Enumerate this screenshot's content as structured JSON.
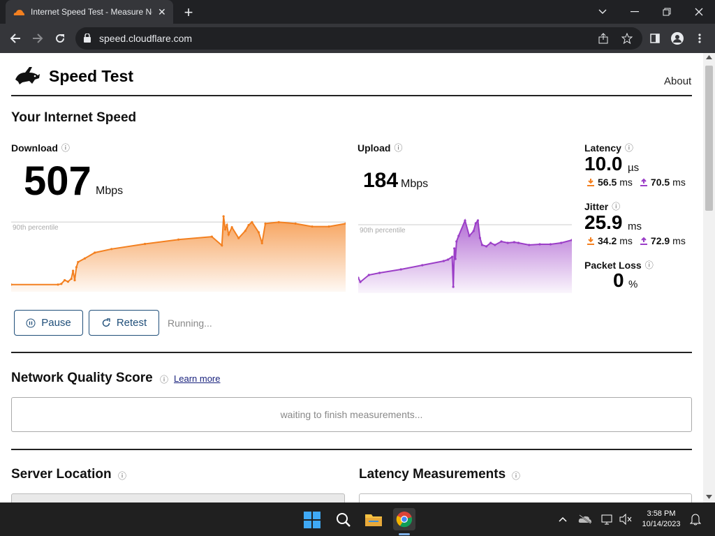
{
  "browser": {
    "tab_title": "Internet Speed Test - Measure Ne",
    "tab_close": "✕",
    "new_tab": "+",
    "url": "speed.cloudflare.com"
  },
  "header": {
    "title": "Speed Test",
    "about": "About"
  },
  "speed": {
    "heading": "Your Internet Speed",
    "download": {
      "label": "Download",
      "value": "507",
      "unit": "Mbps"
    },
    "upload": {
      "label": "Upload",
      "value": "184",
      "unit": "Mbps"
    },
    "percentile_label": "90th percentile"
  },
  "latency": {
    "label": "Latency",
    "value": "10.0",
    "unit": "µs",
    "down": "56.5",
    "up": "70.5",
    "sub_unit": "ms"
  },
  "jitter": {
    "label": "Jitter",
    "value": "25.9",
    "unit": "ms",
    "down": "34.2",
    "up": "72.9",
    "sub_unit": "ms"
  },
  "packet_loss": {
    "label": "Packet Loss",
    "value": "0",
    "unit": "%"
  },
  "controls": {
    "pause": "Pause",
    "retest": "Retest",
    "status": "Running..."
  },
  "nqs": {
    "heading": "Network Quality Score",
    "learn_more": "Learn more",
    "waiting": "waiting to finish measurements..."
  },
  "sections": {
    "server_location": "Server Location",
    "latency_measurements": "Latency Measurements"
  },
  "taskbar": {
    "time": "3:58 PM",
    "date": "10/14/2023"
  },
  "colors": {
    "download": "#f38020",
    "upload": "#9b3ec7",
    "brand": "#1f4e79"
  },
  "chart_data": [
    {
      "type": "area",
      "title": "Download",
      "annotations": [
        "90th percentile"
      ],
      "x": [
        0,
        14,
        15,
        16,
        17,
        18,
        18.5,
        19,
        19.5,
        20,
        22,
        25,
        30,
        40,
        50,
        60,
        63,
        63.5,
        64,
        64.5,
        65,
        66,
        68,
        70,
        71,
        72,
        74,
        75,
        76,
        80,
        85,
        90,
        95,
        100
      ],
      "values": [
        6,
        6,
        7,
        12,
        10,
        14,
        25,
        12,
        30,
        37,
        42,
        50,
        55,
        62,
        68,
        72,
        60,
        100,
        82,
        88,
        75,
        85,
        70,
        80,
        88,
        92,
        78,
        63,
        90,
        92,
        90,
        86,
        86,
        90
      ]
    },
    {
      "type": "area",
      "title": "Upload",
      "annotations": [
        "90th percentile"
      ],
      "x": [
        0,
        1,
        5,
        10,
        20,
        30,
        40,
        42,
        44,
        44.5,
        45,
        45.5,
        46,
        47,
        50,
        52,
        54,
        55,
        56,
        57,
        58,
        60,
        62,
        64,
        67,
        70,
        73,
        75,
        80,
        85,
        90,
        95,
        100
      ],
      "values": [
        18,
        12,
        22,
        25,
        30,
        36,
        42,
        44,
        48,
        5,
        60,
        45,
        70,
        78,
        100,
        78,
        85,
        96,
        100,
        75,
        65,
        63,
        68,
        65,
        70,
        68,
        69,
        68,
        65,
        66,
        66,
        68,
        72
      ]
    }
  ]
}
